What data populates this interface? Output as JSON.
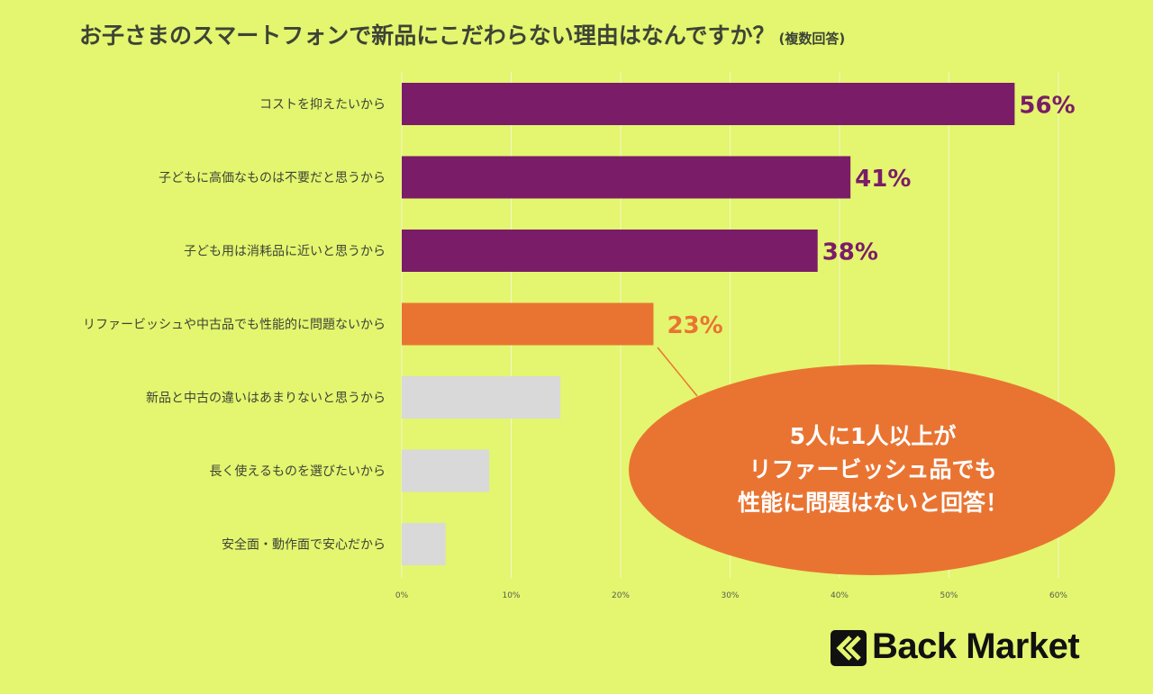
{
  "title": {
    "main": "お子さまのスマートフォンで新品にこだわらない理由はなんですか？",
    "sub": "(複数回答)"
  },
  "chart_data": {
    "type": "bar",
    "orientation": "horizontal",
    "categories": [
      "コストを抑えたいから",
      "子どもに高価なものは不要だと思うから",
      "子ども用は消耗品に近いと思うから",
      "リファービッシュや中古品でも性能的に問題ないから",
      "新品と中古の違いはあまりないと思うから",
      "長く使えるものを選びたいから",
      "安全面・動作面で安心だから"
    ],
    "values": [
      56,
      41,
      38,
      23,
      14.5,
      8,
      4
    ],
    "value_labels": [
      "56%",
      "41%",
      "38%",
      "23%",
      "",
      "",
      ""
    ],
    "bar_colors": [
      "#7a1c68",
      "#7a1c68",
      "#7a1c68",
      "#e97432",
      "#d9d9d9",
      "#d9d9d9",
      "#d9d9d9"
    ],
    "label_colors": [
      "#7a1c68",
      "#7a1c68",
      "#7a1c68",
      "#e97432"
    ],
    "x_ticks": [
      "0%",
      "10%",
      "20%",
      "30%",
      "40%",
      "50%",
      "60%"
    ],
    "xlim": [
      0,
      60
    ],
    "grid": true
  },
  "callout": {
    "lines": [
      "5人に1人以上が",
      "リファービッシュ品でも",
      "性能に問題はないと回答！"
    ],
    "color": "#e97432"
  },
  "logo": {
    "text": "Back Market"
  },
  "colors": {
    "background": "#e4f56f",
    "highlight": "#e97432",
    "primary": "#7a1c68",
    "muted": "#d9d9d9"
  }
}
